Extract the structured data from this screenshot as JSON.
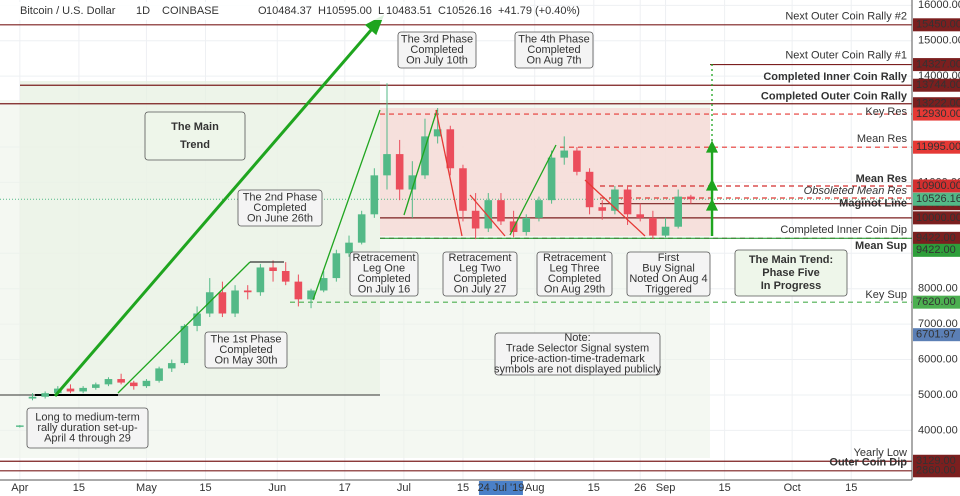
{
  "chart_data": {
    "type": "candlestick",
    "title": "Bitcoin / U.S. Dollar",
    "interval": "1D",
    "exchange": "COINBASE",
    "ohlc": [
      "O",
      "10484.37",
      "H",
      "10595.00",
      "L",
      "10483.51",
      "C",
      "10526.16",
      "+41.79 (+0.40%)"
    ],
    "x": [
      0,
      3,
      6,
      9,
      12,
      15,
      18,
      21,
      24,
      27,
      30,
      33,
      36,
      39,
      42,
      45,
      48,
      51,
      54,
      57,
      60,
      63,
      66,
      69,
      72,
      75,
      78,
      81,
      84,
      87,
      90,
      93,
      96,
      99,
      102,
      105,
      108,
      111,
      114,
      117,
      120,
      123,
      126,
      129,
      132,
      135,
      138,
      141,
      144,
      147,
      150,
      153,
      156,
      159
    ],
    "series": {
      "up_color": "#53b987",
      "down_color": "#eb4d5c",
      "open": [
        4100,
        4900,
        4950,
        5050,
        5180,
        5100,
        5200,
        5300,
        5450,
        5350,
        5250,
        5400,
        5750,
        5900,
        6950,
        7300,
        7900,
        7300,
        7950,
        7900,
        8600,
        8500,
        8200,
        7700,
        7950,
        8300,
        9000,
        9300,
        10100,
        11200,
        11800,
        10800,
        11200,
        12300,
        12500,
        11400,
        10200,
        9700,
        10500,
        9900,
        9600,
        10000,
        10500,
        11700,
        11900,
        11300,
        10300,
        10200,
        10800,
        10100,
        10000,
        9500,
        9750,
        10600
      ],
      "high": [
        4150,
        5050,
        5100,
        5250,
        5300,
        5250,
        5350,
        5500,
        5600,
        5400,
        5450,
        5800,
        6000,
        7000,
        7500,
        8300,
        8200,
        8100,
        8100,
        8700,
        8800,
        8750,
        8400,
        8000,
        8500,
        9100,
        9500,
        10200,
        11400,
        13800,
        12200,
        11600,
        12800,
        13100,
        12600,
        11500,
        10700,
        10700,
        10700,
        10200,
        10100,
        10600,
        11900,
        12300,
        12000,
        11400,
        10500,
        10900,
        10900,
        10400,
        10200,
        10000,
        10800,
        10650
      ],
      "low": [
        4080,
        4850,
        4900,
        5000,
        5050,
        5050,
        5150,
        5250,
        5300,
        5150,
        5200,
        5350,
        5650,
        5850,
        6800,
        7200,
        7200,
        7200,
        7700,
        7800,
        8200,
        8100,
        7500,
        7450,
        7900,
        8200,
        8900,
        9250,
        10000,
        10800,
        10500,
        10000,
        11100,
        12100,
        11200,
        9900,
        9400,
        9600,
        9800,
        9450,
        9500,
        9900,
        10400,
        11500,
        11200,
        10100,
        9950,
        10100,
        9800,
        9900,
        9400,
        9450,
        9700,
        10400
      ],
      "close": [
        4140,
        4950,
        5050,
        5180,
        5100,
        5200,
        5300,
        5450,
        5350,
        5250,
        5400,
        5750,
        5900,
        6950,
        7300,
        7900,
        7300,
        7950,
        7900,
        8600,
        8500,
        8200,
        7700,
        7950,
        8300,
        9000,
        9300,
        10100,
        11200,
        11800,
        10800,
        11200,
        12300,
        12500,
        11400,
        10200,
        9700,
        10500,
        9900,
        9600,
        10000,
        10500,
        11700,
        11900,
        11300,
        10300,
        10200,
        10800,
        10100,
        10000,
        9500,
        9750,
        10600,
        10526
      ]
    },
    "xlim": [
      -4.7,
      211.4
    ],
    "xticks": [
      {
        "value": 0,
        "label": "Apr"
      },
      {
        "value": 14,
        "label": "15"
      },
      {
        "value": 30,
        "label": "May"
      },
      {
        "value": 44,
        "label": "15"
      },
      {
        "value": 61,
        "label": "Jun"
      },
      {
        "value": 77,
        "label": "17"
      },
      {
        "value": 91,
        "label": "Jul"
      },
      {
        "value": 105,
        "label": "15"
      },
      {
        "value": 122,
        "label": "Aug"
      },
      {
        "value": 136,
        "label": "15"
      },
      {
        "value": 147,
        "label": "26"
      },
      {
        "value": 153,
        "label": "Sep"
      },
      {
        "value": 167,
        "label": "15"
      },
      {
        "value": 183,
        "label": "Oct"
      },
      {
        "value": 197,
        "label": "15"
      }
    ],
    "crosshair_x": {
      "value": 114,
      "label": "24 Jul '19"
    },
    "ylim": [
      2600,
      16150
    ],
    "yticks": [
      {
        "value": 4000,
        "label": "4000.00"
      },
      {
        "value": 5000,
        "label": "5000.00"
      },
      {
        "value": 6000,
        "label": "6000.00"
      },
      {
        "value": 7000,
        "label": "7000.00"
      },
      {
        "value": 8000,
        "label": "8000.00"
      },
      {
        "value": 9000,
        "label": "9000.00"
      },
      {
        "value": 11000,
        "label": "11000.00"
      },
      {
        "value": 12000,
        "label": "12000.00"
      },
      {
        "value": 14000,
        "label": "14000.00"
      },
      {
        "value": 15000,
        "label": "15000.00"
      },
      {
        "value": 16000,
        "label": "16000.00"
      }
    ],
    "grid": true,
    "levels": [
      {
        "name": "Next Outer Coin Rally #2",
        "value": 15450,
        "label": "15450.00",
        "color": "#7b1f1f"
      },
      {
        "name": "Next Outer Coin Rally #1",
        "value": 14327,
        "label": "14327.00",
        "color": "#7b1f1f"
      },
      {
        "name": "Completed Inner Coin Rally",
        "value": 13744,
        "label": "13744.00",
        "color": "#7b1f1f"
      },
      {
        "name": "Completed Outer Coin Rally",
        "value": 13222,
        "label": "13222.00",
        "color": "#7b1f1f"
      },
      {
        "name": "Key Res",
        "value": 12930,
        "label": "12930.00",
        "color": "#e53935"
      },
      {
        "name": "Mean Res",
        "value": 11995,
        "label": "11995.00",
        "color": "#e53935"
      },
      {
        "name": "Mean Res",
        "value": 10900,
        "label": "10900.00",
        "color": "#d32f2f"
      },
      {
        "name": "Obsoleted Mean Res",
        "value": 10560,
        "color": "#e53935"
      },
      {
        "name": "Maginot Line",
        "value": 10400,
        "label": "10400.00",
        "color": "#7b1f1f"
      },
      {
        "value": 10000,
        "label": "10000.00",
        "color": "#7b1f1f"
      },
      {
        "name": "Completed Inner Coin Dip",
        "value": 9422,
        "label": "9422.00",
        "color": "#7b1f1f"
      },
      {
        "name": "Mean Sup",
        "value": 9422,
        "label": "9422.00",
        "color": "#2e9e3a"
      },
      {
        "name": "Key Sup",
        "value": 7620,
        "label": "7620.00",
        "color": "#4caf50"
      },
      {
        "value": 6701.97,
        "label": "6701.97",
        "color": "#5b7fb5"
      },
      {
        "name": "Yearly Low",
        "value": 3129,
        "label": "3129.00",
        "color": "#7b1f1f"
      },
      {
        "name": "Outer Coin Dip",
        "value": 2860,
        "label": "2860.00",
        "color": "#7b1f1f"
      }
    ],
    "last_price": {
      "value": 10526.16,
      "label": "10526.16",
      "color": "#53b987"
    },
    "annotations": [
      {
        "lines": [
          "The Main",
          "Trend"
        ]
      },
      {
        "lines": [
          "The 2nd Phase",
          "Completed",
          "On June 26th"
        ]
      },
      {
        "lines": [
          "The 3rd Phase",
          "Completed",
          "On July 10th"
        ]
      },
      {
        "lines": [
          "The 4th Phase",
          "Completed",
          "On Aug 7th"
        ]
      },
      {
        "lines": [
          "The 1st Phase",
          "Completed",
          "On May 30th"
        ]
      },
      {
        "lines": [
          "Long to medium-term",
          "rally duration set-up-",
          "April 4 through 29"
        ]
      },
      {
        "lines": [
          "Retracement",
          "Leg One",
          "Completed",
          "On July 16"
        ]
      },
      {
        "lines": [
          "Retracement",
          "Leg Two",
          "Completed",
          "On July 27"
        ]
      },
      {
        "lines": [
          "Retracement",
          "Leg Three",
          "Completed",
          "On Aug 29th"
        ]
      },
      {
        "lines": [
          "First",
          "Buy Signal",
          "Noted On Aug 4",
          "Triggered"
        ]
      },
      {
        "lines": [
          "The Main Trend:",
          "Phase Five",
          "In Progress"
        ]
      },
      {
        "lines": [
          "Note:",
          "Trade Selector Signal system",
          "price-action-time-trademark",
          "symbols are not displayed publicly"
        ]
      }
    ]
  }
}
